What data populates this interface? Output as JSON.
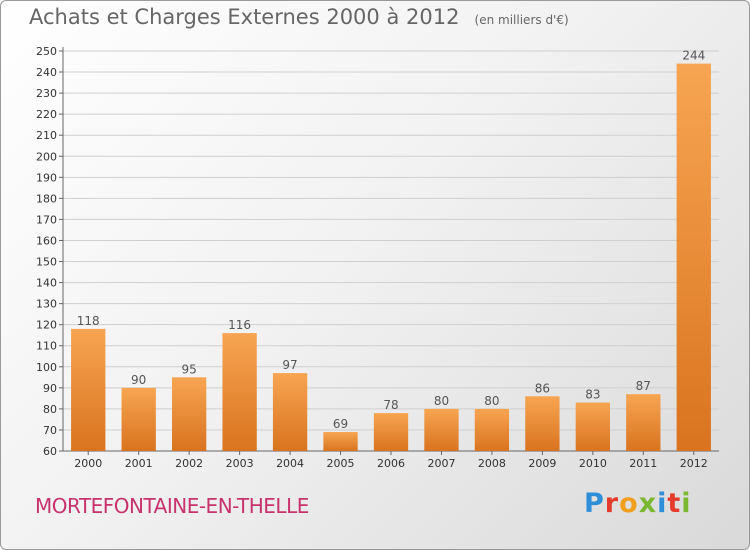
{
  "chart_data": {
    "type": "bar",
    "title": "Achats et Charges Externes 2000 à 2012",
    "subtitle": "(en milliers d'€)",
    "categories": [
      "2000",
      "2001",
      "2002",
      "2003",
      "2004",
      "2005",
      "2006",
      "2007",
      "2008",
      "2009",
      "2010",
      "2011",
      "2012"
    ],
    "values": [
      118,
      90,
      95,
      116,
      97,
      69,
      78,
      80,
      80,
      86,
      83,
      87,
      244
    ],
    "ylim": [
      60,
      250
    ],
    "ytick_step": 10,
    "grid": true,
    "bar_color_light": "#f7a552",
    "bar_color_dark": "#d9731f"
  },
  "footer": {
    "commune": "MORTEFONTAINE-EN-THELLE",
    "logo_text": "Proxiti",
    "logo_colors": [
      "#2e8fd8",
      "#e53b2c",
      "#f0a01a",
      "#7cb82f",
      "#2e8fd8",
      "#e53b2c",
      "#7cb82f"
    ]
  }
}
